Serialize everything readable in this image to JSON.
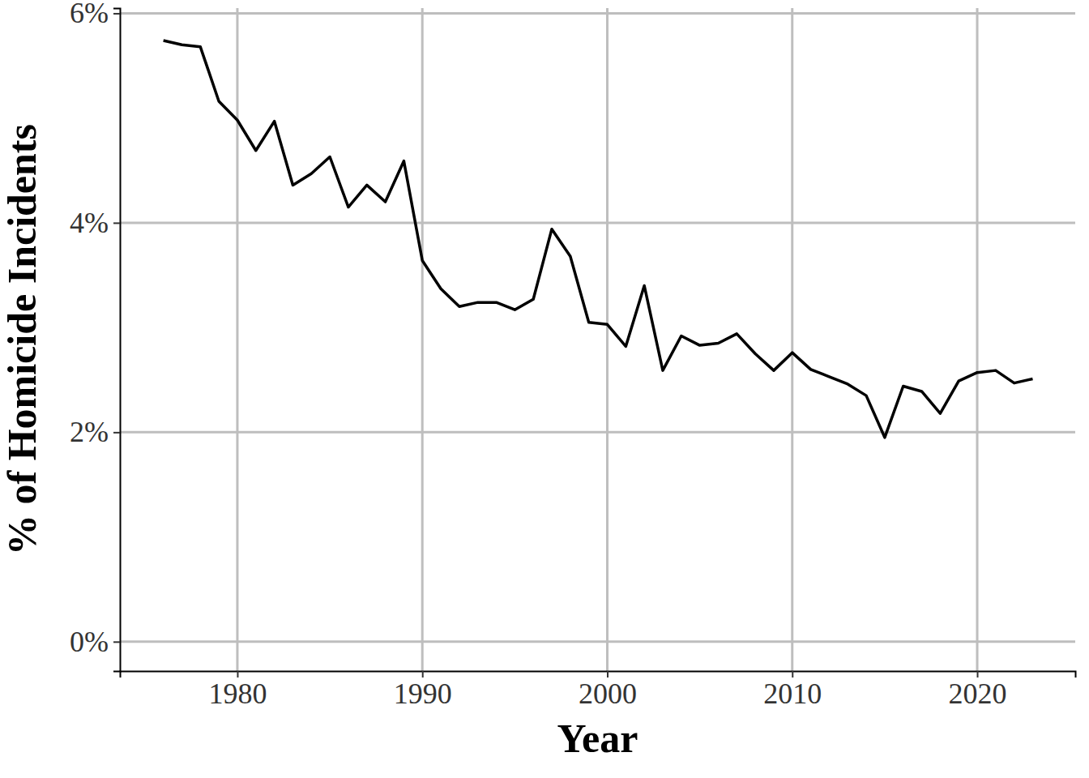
{
  "chart_data": {
    "type": "line",
    "x_label": "Year",
    "y_label": "% of Homicide Incidents",
    "x": [
      1976,
      1977,
      1978,
      1979,
      1980,
      1981,
      1982,
      1983,
      1984,
      1985,
      1986,
      1987,
      1988,
      1989,
      1990,
      1991,
      1992,
      1993,
      1994,
      1995,
      1996,
      1997,
      1998,
      1999,
      2000,
      2001,
      2002,
      2003,
      2004,
      2005,
      2006,
      2007,
      2008,
      2009,
      2010,
      2011,
      2012,
      2013,
      2014,
      2015,
      2016,
      2017,
      2018,
      2019,
      2020,
      2021,
      2022,
      2023
    ],
    "series": [
      {
        "color": "#000000",
        "values": [
          5.74,
          5.7,
          5.68,
          5.16,
          4.98,
          4.69,
          4.97,
          4.36,
          4.47,
          4.63,
          4.15,
          4.36,
          4.2,
          4.59,
          3.64,
          3.37,
          3.2,
          3.24,
          3.24,
          3.17,
          3.27,
          3.94,
          3.68,
          3.05,
          3.03,
          2.82,
          3.4,
          2.59,
          2.92,
          2.83,
          2.85,
          2.94,
          2.75,
          2.59,
          2.76,
          2.6,
          2.53,
          2.46,
          2.35,
          1.95,
          2.44,
          2.39,
          2.18,
          2.49,
          2.57,
          2.59,
          2.47,
          2.51
        ]
      }
    ],
    "xlim": [
      1973.65,
      2025.3
    ],
    "xticks": [
      1980,
      1990,
      2000,
      2010,
      2020
    ],
    "ylim": [
      -0.28,
      6.05
    ],
    "yticks": [
      {
        "value": 0,
        "label": "0%"
      },
      {
        "value": 2,
        "label": "2%"
      },
      {
        "value": 4,
        "label": "4%"
      },
      {
        "value": 6,
        "label": "6%"
      }
    ],
    "grid": true
  }
}
